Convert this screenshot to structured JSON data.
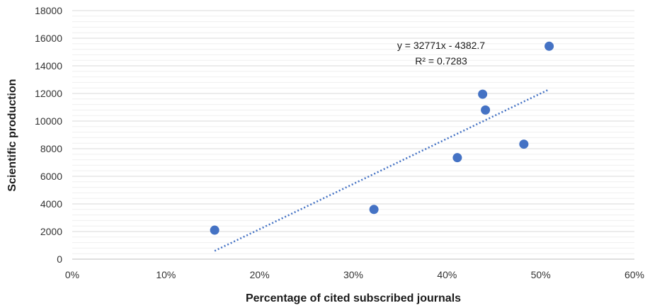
{
  "chart_data": {
    "type": "scatter",
    "title": "",
    "xlabel": "Percentage of cited subscribed journals",
    "ylabel": "Scientific production",
    "xlim": [
      0,
      0.6
    ],
    "ylim": [
      0,
      18000
    ],
    "x_ticks": [
      0,
      0.1,
      0.2,
      0.3,
      0.4,
      0.5,
      0.6
    ],
    "x_tick_labels": [
      "0%",
      "10%",
      "20%",
      "30%",
      "40%",
      "50%",
      "60%"
    ],
    "y_ticks": [
      0,
      2000,
      4000,
      6000,
      8000,
      10000,
      12000,
      14000,
      16000,
      18000
    ],
    "y_tick_labels": [
      "0",
      "2000",
      "4000",
      "6000",
      "8000",
      "10000",
      "12000",
      "14000",
      "16000",
      "18000"
    ],
    "grid": true,
    "series": [
      {
        "color": "#4472C4",
        "points": [
          {
            "x": 0.152,
            "y": 2100
          },
          {
            "x": 0.322,
            "y": 3600
          },
          {
            "x": 0.411,
            "y": 7350
          },
          {
            "x": 0.438,
            "y": 11950
          },
          {
            "x": 0.441,
            "y": 10800
          },
          {
            "x": 0.482,
            "y": 8330
          },
          {
            "x": 0.509,
            "y": 15420
          }
        ]
      }
    ],
    "trendline": {
      "type": "linear",
      "style": "dotted",
      "color": "#4472C4",
      "slope": 32771,
      "intercept": -4382.7,
      "x_range": [
        0.152,
        0.509
      ],
      "equation_label": "y = 32771x - 4382.7",
      "r2_label": "R² = 0.7283"
    }
  }
}
